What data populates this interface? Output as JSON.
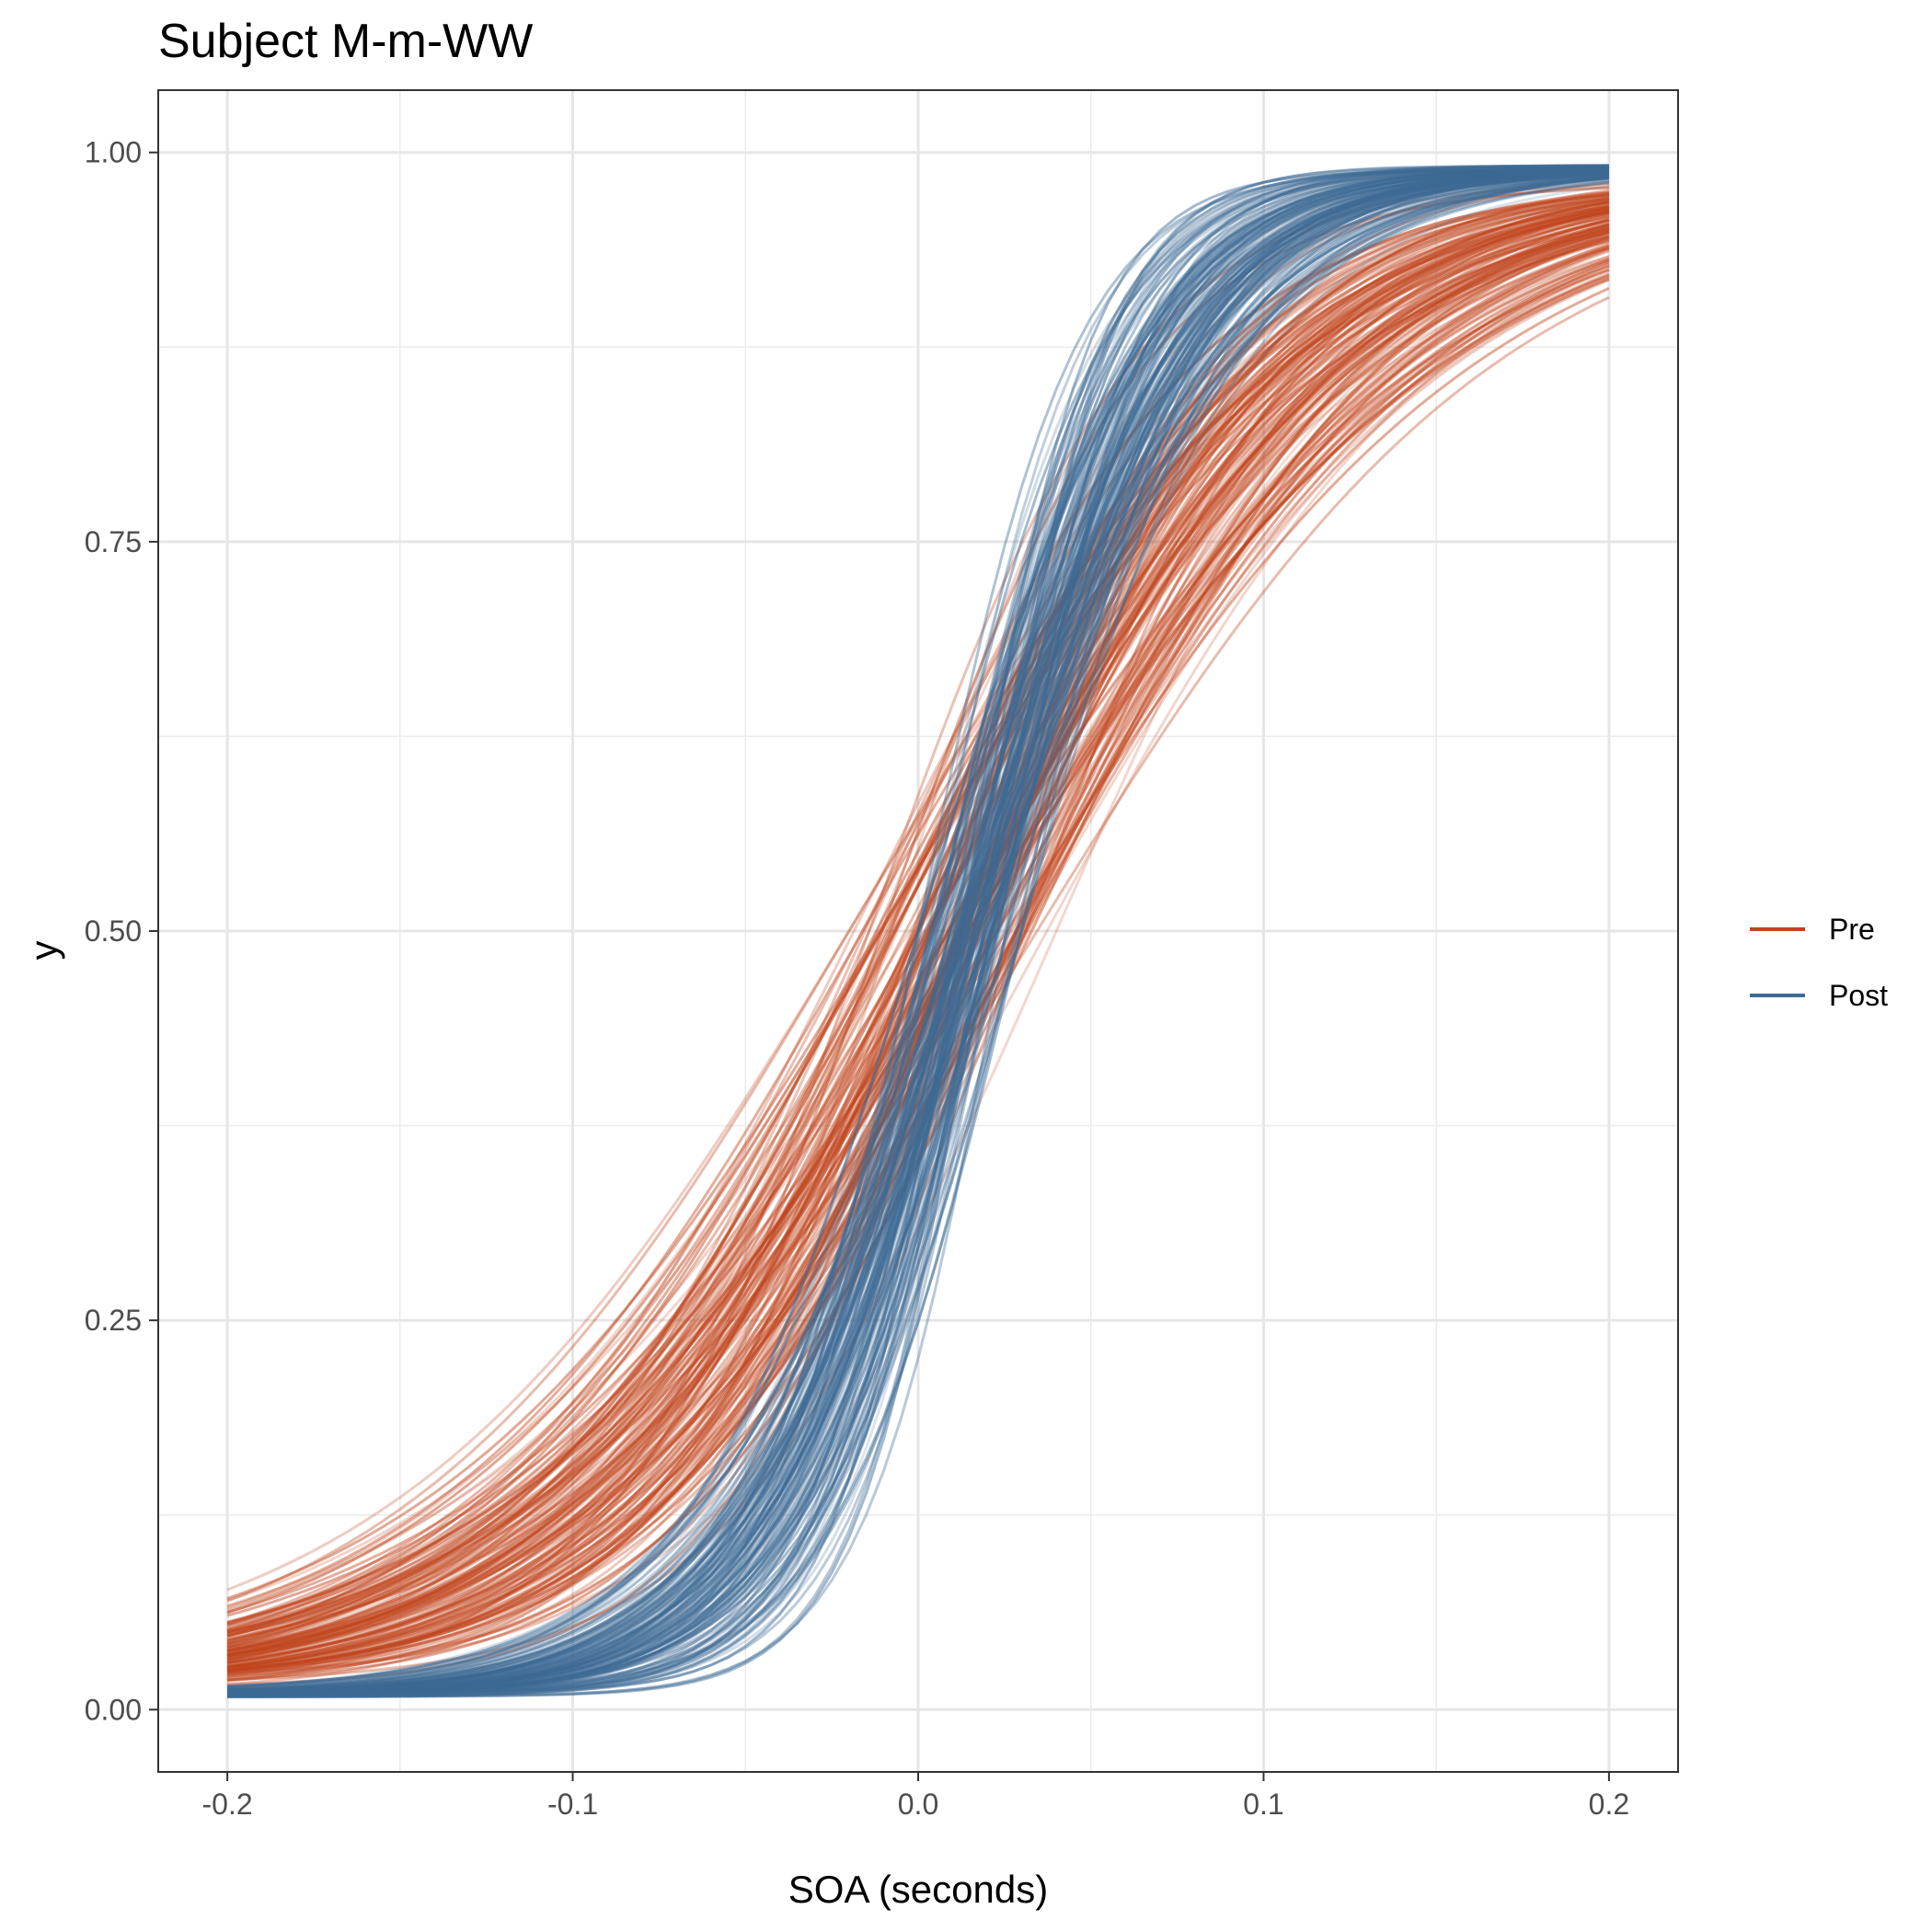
{
  "chart_data": {
    "type": "line",
    "title": "Subject M-m-WW",
    "xlabel": "SOA (seconds)",
    "ylabel": "y",
    "xlim": [
      -0.22,
      0.22
    ],
    "ylim": [
      -0.04,
      1.04
    ],
    "x_ticks": [
      -0.2,
      -0.1,
      0.0,
      0.1,
      0.2
    ],
    "x_tick_labels": [
      "-0.2",
      "-0.1",
      "0.0",
      "0.1",
      "0.2"
    ],
    "y_ticks": [
      0.0,
      0.25,
      0.5,
      0.75,
      1.0
    ],
    "y_tick_labels": [
      "0.00",
      "0.25",
      "0.50",
      "0.75",
      "1.00"
    ],
    "x_domain": [
      -0.2,
      0.2
    ],
    "grid": true,
    "legend_position": "right",
    "series": [
      {
        "name": "Pre",
        "color": "#c0441c",
        "n_curves": 150,
        "function": "psychometric: lambda + (1 - 2*lambda) / (1 + exp(-(x - alpha)/beta))",
        "alpha_range": [
          -0.02,
          0.04
        ],
        "beta_range": [
          0.035,
          0.075
        ],
        "lambda_range": [
          0.01,
          0.02
        ]
      },
      {
        "name": "Post",
        "color": "#3d6a94",
        "n_curves": 150,
        "function": "psychometric: lambda + (1 - 2*lambda) / (1 + exp(-(x - alpha)/beta))",
        "alpha_range": [
          0.0,
          0.03
        ],
        "beta_range": [
          0.018,
          0.04
        ],
        "lambda_range": [
          0.008,
          0.012
        ]
      }
    ]
  }
}
